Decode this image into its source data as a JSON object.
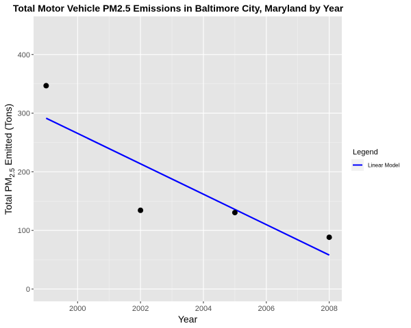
{
  "chart_data": {
    "type": "scatter",
    "title": "Total Motor Vehicle PM2.5 Emissions in Baltimore City, Maryland by Year",
    "xlabel": "Year",
    "ylabel": {
      "prefix": "Total PM",
      "subscript": "2.5",
      "suffix": " Emitted (Tons)"
    },
    "xlim": [
      1998.6,
      2008.4
    ],
    "ylim": [
      -21,
      465
    ],
    "x_ticks": [
      2000,
      2002,
      2004,
      2006,
      2008
    ],
    "y_ticks": [
      0,
      100,
      200,
      300,
      400
    ],
    "grid": true,
    "points": {
      "x": [
        1999,
        2002,
        2005,
        2008
      ],
      "y": [
        346.8,
        134.3,
        130.4,
        88.3
      ]
    },
    "series": [
      {
        "name": "Linear Model",
        "type": "line",
        "x": [
          1999,
          2008
        ],
        "y": [
          291.4,
          58.0
        ]
      }
    ],
    "legend": {
      "title": "Legend",
      "position": "right",
      "entries": [
        "Linear Model"
      ]
    },
    "colors": {
      "panel": "#e5e5e5",
      "grid_major": "#ffffff",
      "grid_minor": "#f2f2f2",
      "points": "#000000",
      "line": "#0000ff"
    }
  }
}
